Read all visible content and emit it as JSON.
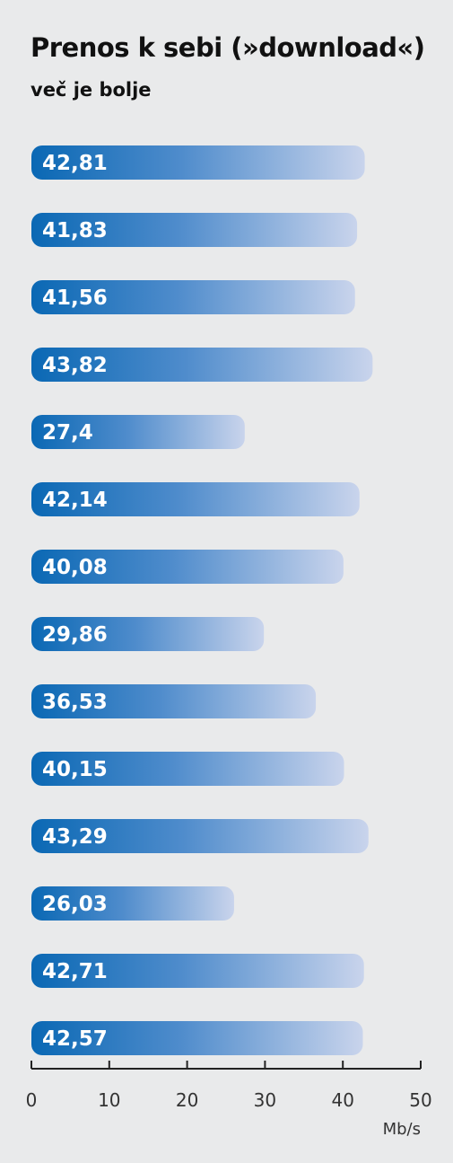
{
  "chart_data": {
    "type": "bar",
    "orientation": "horizontal",
    "title": "Prenos k sebi (»download«)",
    "subtitle": "več je bolje",
    "values": [
      42.81,
      41.83,
      41.56,
      43.82,
      27.4,
      42.14,
      40.08,
      29.86,
      36.53,
      40.15,
      43.29,
      26.03,
      42.71,
      42.57
    ],
    "value_labels": [
      "42,81",
      "41,83",
      "41,56",
      "43,82",
      "27,4",
      "42,14",
      "40,08",
      "29,86",
      "36,53",
      "40,15",
      "43,29",
      "26,03",
      "42,71",
      "42,57"
    ],
    "xlim": [
      0,
      50
    ],
    "xticks": [
      0,
      10,
      20,
      30,
      40,
      50
    ],
    "xunit": "Mb/s",
    "grid": false,
    "colors": {
      "bar_start": "#0a68b4",
      "bar_mid": "#4f8ccc",
      "bar_end": "#c9d4ec",
      "label": "#ffffff",
      "axis": "#222222",
      "background": "#e9eaeb"
    }
  }
}
